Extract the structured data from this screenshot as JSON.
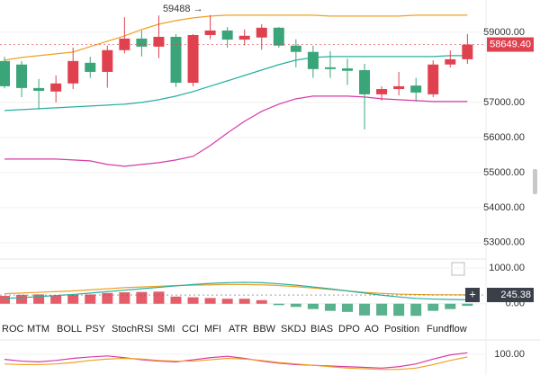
{
  "chart_data": [
    {
      "type": "candlestick",
      "open": [
        58180,
        58080,
        57410,
        57310,
        57540,
        58130,
        57870,
        58490,
        58820,
        58590,
        58870,
        57560,
        58920,
        59050,
        58790,
        58850,
        59130,
        58620,
        58440,
        58000,
        57970,
        57920,
        57230,
        57380,
        57480,
        57230,
        58080,
        58230
      ],
      "high": [
        58300,
        58180,
        57670,
        57770,
        58560,
        58300,
        58620,
        59430,
        59050,
        59480,
        58950,
        58950,
        59488,
        59150,
        59080,
        59230,
        59150,
        58800,
        58620,
        58460,
        58250,
        58100,
        57460,
        57870,
        57700,
        58200,
        58480,
        58950
      ],
      "low": [
        57400,
        57150,
        56800,
        57000,
        57380,
        57700,
        57420,
        58400,
        58310,
        58260,
        57440,
        57460,
        58800,
        58560,
        58620,
        58500,
        58560,
        58000,
        57700,
        57700,
        57500,
        56230,
        57050,
        57200,
        57020,
        57150,
        58000,
        58100
      ],
      "close": [
        57460,
        57410,
        57330,
        57540,
        58180,
        57870,
        58490,
        58820,
        58590,
        58870,
        57560,
        58920,
        59050,
        58790,
        58900,
        59130,
        58620,
        58440,
        57950,
        57950,
        57900,
        57230,
        57380,
        57460,
        57280,
        58080,
        58230,
        58649.4
      ],
      "up_color": "#e0414f",
      "down_color": "#3ba57a",
      "bands": [
        {
          "color": "#f0a020",
          "values": [
            58205,
            58282,
            58333,
            58385,
            58436,
            58590,
            58744,
            58897,
            59077,
            59231,
            59333,
            59410,
            59462,
            59487,
            59487,
            59487,
            59487,
            59487,
            59487,
            59462,
            59462,
            59462,
            59462,
            59462,
            59487,
            59487,
            59487,
            59487
          ]
        },
        {
          "color": "#26b0a0",
          "values": [
            56769,
            56795,
            56821,
            56846,
            56872,
            56897,
            56923,
            56949,
            57000,
            57077,
            57179,
            57308,
            57462,
            57615,
            57769,
            57923,
            58077,
            58205,
            58282,
            58308,
            58308,
            58308,
            58308,
            58308,
            58308,
            58308,
            58333,
            58333
          ]
        },
        {
          "color": "#d63aa8",
          "values": [
            55385,
            55385,
            55385,
            55385,
            55359,
            55333,
            55231,
            55179,
            55231,
            55282,
            55359,
            55462,
            55769,
            56128,
            56462,
            56744,
            56949,
            57103,
            57179,
            57179,
            57179,
            57154,
            57103,
            57077,
            57051,
            57026,
            57026,
            57026
          ]
        }
      ],
      "ylim": [
        52560,
        59920
      ],
      "yticks": [
        {
          "value": 53000,
          "label": "53000.00"
        },
        {
          "value": 54000,
          "label": "54000.00"
        },
        {
          "value": 55000,
          "label": "55000.00"
        },
        {
          "value": 56000,
          "label": "56000.00"
        },
        {
          "value": 57000,
          "label": "57000.00"
        },
        {
          "value": 59000,
          "label": "59000.00"
        }
      ],
      "grid": true,
      "high_label": "59488 →",
      "last_price": {
        "value": 58649.4,
        "label": "58649.40"
      }
    },
    {
      "type": "bar",
      "values": [
        220,
        250,
        260,
        230,
        250,
        260,
        300,
        320,
        330,
        340,
        200,
        180,
        160,
        140,
        140,
        100,
        -40,
        -90,
        -150,
        -200,
        -230,
        -330,
        -330,
        -340,
        -340,
        -200,
        -150,
        -60
      ],
      "up_color": "#e0414f",
      "down_color": "#3ba57a",
      "lines": [
        {
          "color": "#f0a020",
          "values": [
            280,
            300,
            320,
            340,
            360,
            390,
            420,
            450,
            470,
            490,
            510,
            520,
            530,
            540,
            540,
            530,
            510,
            480,
            440,
            400,
            360,
            320,
            290,
            270,
            260,
            250,
            250,
            245.38
          ]
        },
        {
          "color": "#26b0a0",
          "values": [
            150,
            170,
            200,
            230,
            260,
            300,
            340,
            380,
            420,
            460,
            500,
            540,
            570,
            590,
            600,
            590,
            560,
            520,
            470,
            420,
            360,
            300,
            240,
            190,
            150,
            130,
            120,
            110
          ]
        }
      ],
      "ylim": [
        -360,
        1230
      ],
      "yticks": [
        {
          "value": 0,
          "label": "0.00"
        },
        {
          "value": 1000,
          "label": "1000.00"
        }
      ],
      "marker": {
        "value": 245.38,
        "label": "245.38"
      }
    },
    {
      "type": "line",
      "lines": [
        {
          "color": "#d63aa8",
          "values": [
            85,
            80,
            78,
            82,
            88,
            92,
            95,
            90,
            84,
            80,
            78,
            84,
            90,
            94,
            88,
            80,
            74,
            70,
            68,
            66,
            64,
            62,
            60,
            64,
            72,
            86,
            98,
            104
          ]
        },
        {
          "color": "#f0a020",
          "values": [
            72,
            70,
            70,
            72,
            76,
            82,
            86,
            88,
            86,
            82,
            80,
            80,
            84,
            88,
            86,
            82,
            76,
            72,
            68,
            64,
            60,
            58,
            56,
            56,
            60,
            70,
            82,
            92
          ]
        }
      ],
      "ylim": [
        40,
        136
      ],
      "yticks": [
        {
          "value": 100,
          "label": "100.00"
        }
      ]
    }
  ],
  "indicator_tabs": [
    "ROC",
    "MTM",
    "BOLL",
    "PSY",
    "StochRSI",
    "SMI",
    "CCI",
    "MFI",
    "ATR",
    "BBW",
    "SKDJ",
    "BIAS",
    "DPO",
    "AO",
    "Position",
    "Fundflow"
  ]
}
